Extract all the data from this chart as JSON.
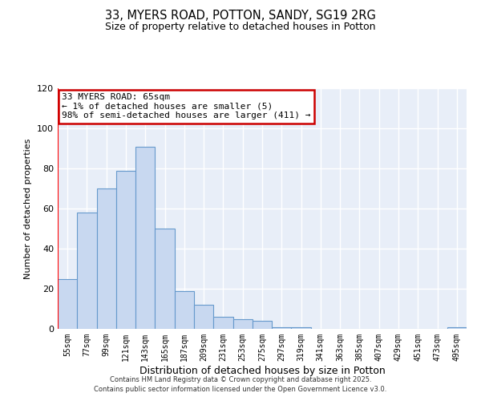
{
  "title1": "33, MYERS ROAD, POTTON, SANDY, SG19 2RG",
  "title2": "Size of property relative to detached houses in Potton",
  "xlabel": "Distribution of detached houses by size in Potton",
  "ylabel": "Number of detached properties",
  "annotation_title": "33 MYERS ROAD: 65sqm",
  "annotation_line1": "← 1% of detached houses are smaller (5)",
  "annotation_line2": "98% of semi-detached houses are larger (411) →",
  "bar_labels": [
    "55sqm",
    "77sqm",
    "99sqm",
    "121sqm",
    "143sqm",
    "165sqm",
    "187sqm",
    "209sqm",
    "231sqm",
    "253sqm",
    "275sqm",
    "297sqm",
    "319sqm",
    "341sqm",
    "363sqm",
    "385sqm",
    "407sqm",
    "429sqm",
    "451sqm",
    "473sqm",
    "495sqm"
  ],
  "bar_values": [
    25,
    58,
    70,
    79,
    91,
    50,
    19,
    12,
    6,
    5,
    4,
    1,
    1,
    0,
    0,
    0,
    0,
    0,
    0,
    0,
    1
  ],
  "bar_color": "#c8d8f0",
  "bar_edge_color": "#6699cc",
  "annotation_box_edge": "#cc0000",
  "ylim": [
    0,
    120
  ],
  "yticks": [
    0,
    20,
    40,
    60,
    80,
    100,
    120
  ],
  "bg_color": "#e8eef8",
  "grid_color": "#ffffff",
  "footer1": "Contains HM Land Registry data © Crown copyright and database right 2025.",
  "footer2": "Contains public sector information licensed under the Open Government Licence v3.0."
}
